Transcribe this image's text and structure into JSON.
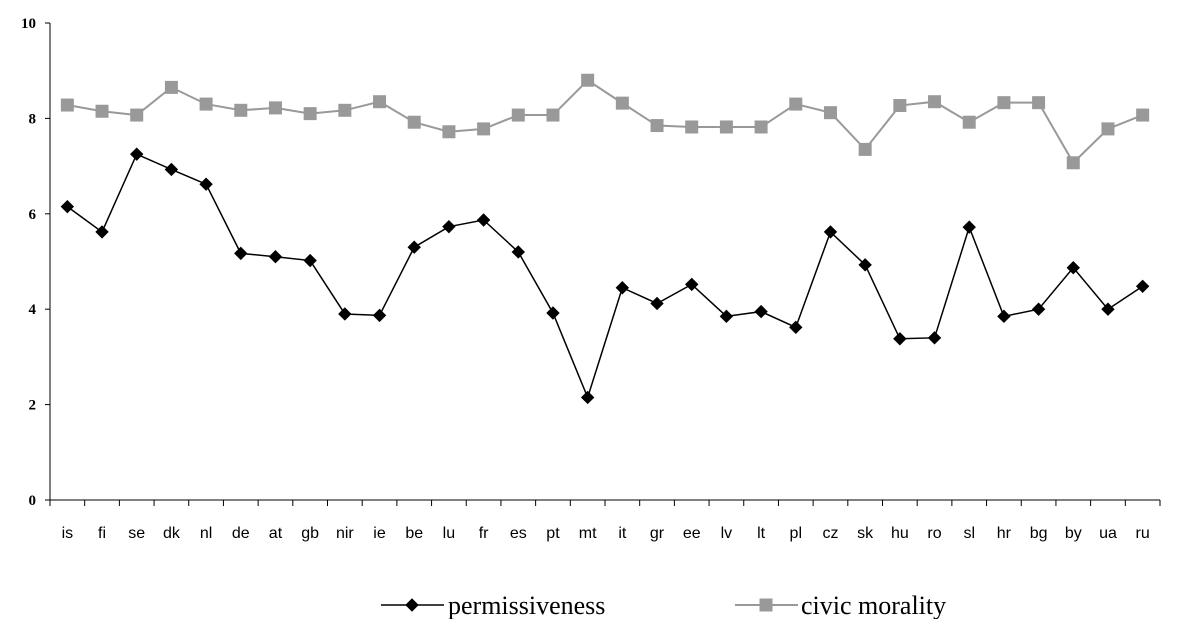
{
  "chart_data": {
    "type": "line",
    "title": "",
    "xlabel": "",
    "ylabel": "",
    "ylim": [
      0,
      10
    ],
    "yticks": [
      "0",
      "2",
      "4",
      "6",
      "8",
      "10"
    ],
    "grid": false,
    "legend_position": "bottom-center",
    "categories": [
      "is",
      "fi",
      "se",
      "dk",
      "nl",
      "de",
      "at",
      "gb",
      "nir",
      "ie",
      "be",
      "lu",
      "fr",
      "es",
      "pt",
      "mt",
      "it",
      "gr",
      "ee",
      "lv",
      "lt",
      "pl",
      "cz",
      "sk",
      "hu",
      "ro",
      "sl",
      "hr",
      "bg",
      "by",
      "ua",
      "ru"
    ],
    "series": [
      {
        "name": "permissiveness",
        "color": "#000000",
        "marker": "diamond",
        "values": [
          6.15,
          5.62,
          7.25,
          6.93,
          6.62,
          5.17,
          5.1,
          5.02,
          3.9,
          3.87,
          5.3,
          5.73,
          5.87,
          5.2,
          3.92,
          2.15,
          4.45,
          4.12,
          4.52,
          3.85,
          3.95,
          3.62,
          5.62,
          4.93,
          3.38,
          3.4,
          5.72,
          3.85,
          4.0,
          4.87,
          4.0,
          4.48
        ]
      },
      {
        "name": "civic morality",
        "color": "#999999",
        "marker": "square",
        "values": [
          8.28,
          8.15,
          8.07,
          8.65,
          8.3,
          8.17,
          8.22,
          8.1,
          8.17,
          8.35,
          7.92,
          7.72,
          7.78,
          8.07,
          8.07,
          8.8,
          8.32,
          7.85,
          7.82,
          7.82,
          7.82,
          8.3,
          8.12,
          7.35,
          8.27,
          8.35,
          7.92,
          8.33,
          8.33,
          7.07,
          7.78,
          8.07
        ]
      }
    ]
  }
}
